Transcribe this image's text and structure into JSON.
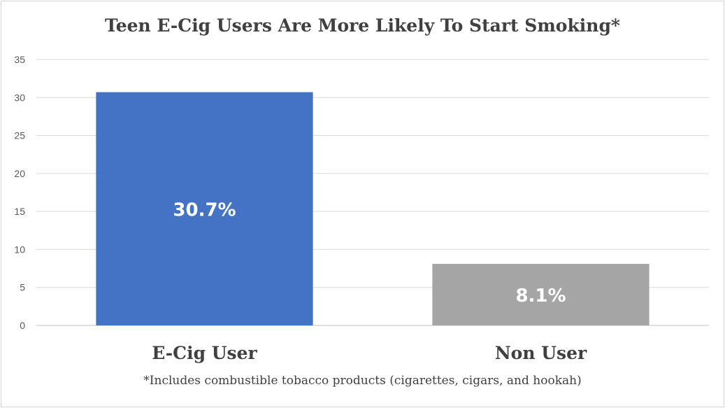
{
  "chart_data": {
    "type": "bar",
    "title": "Teen E-Cig Users Are More Likely To Start Smoking*",
    "categories": [
      "E-Cig User",
      "Non User"
    ],
    "values": [
      30.7,
      8.1
    ],
    "data_labels": [
      "30.7%",
      "8.1%"
    ],
    "bar_colors": [
      "#4472c4",
      "#a5a5a5"
    ],
    "ylim": [
      0,
      35
    ],
    "yticks": [
      0,
      5,
      10,
      15,
      20,
      25,
      30,
      35
    ],
    "grid": true,
    "legend": "none",
    "footnote": "*Includes combustible tobacco products (cigarettes, cigars, and hookah)"
  }
}
